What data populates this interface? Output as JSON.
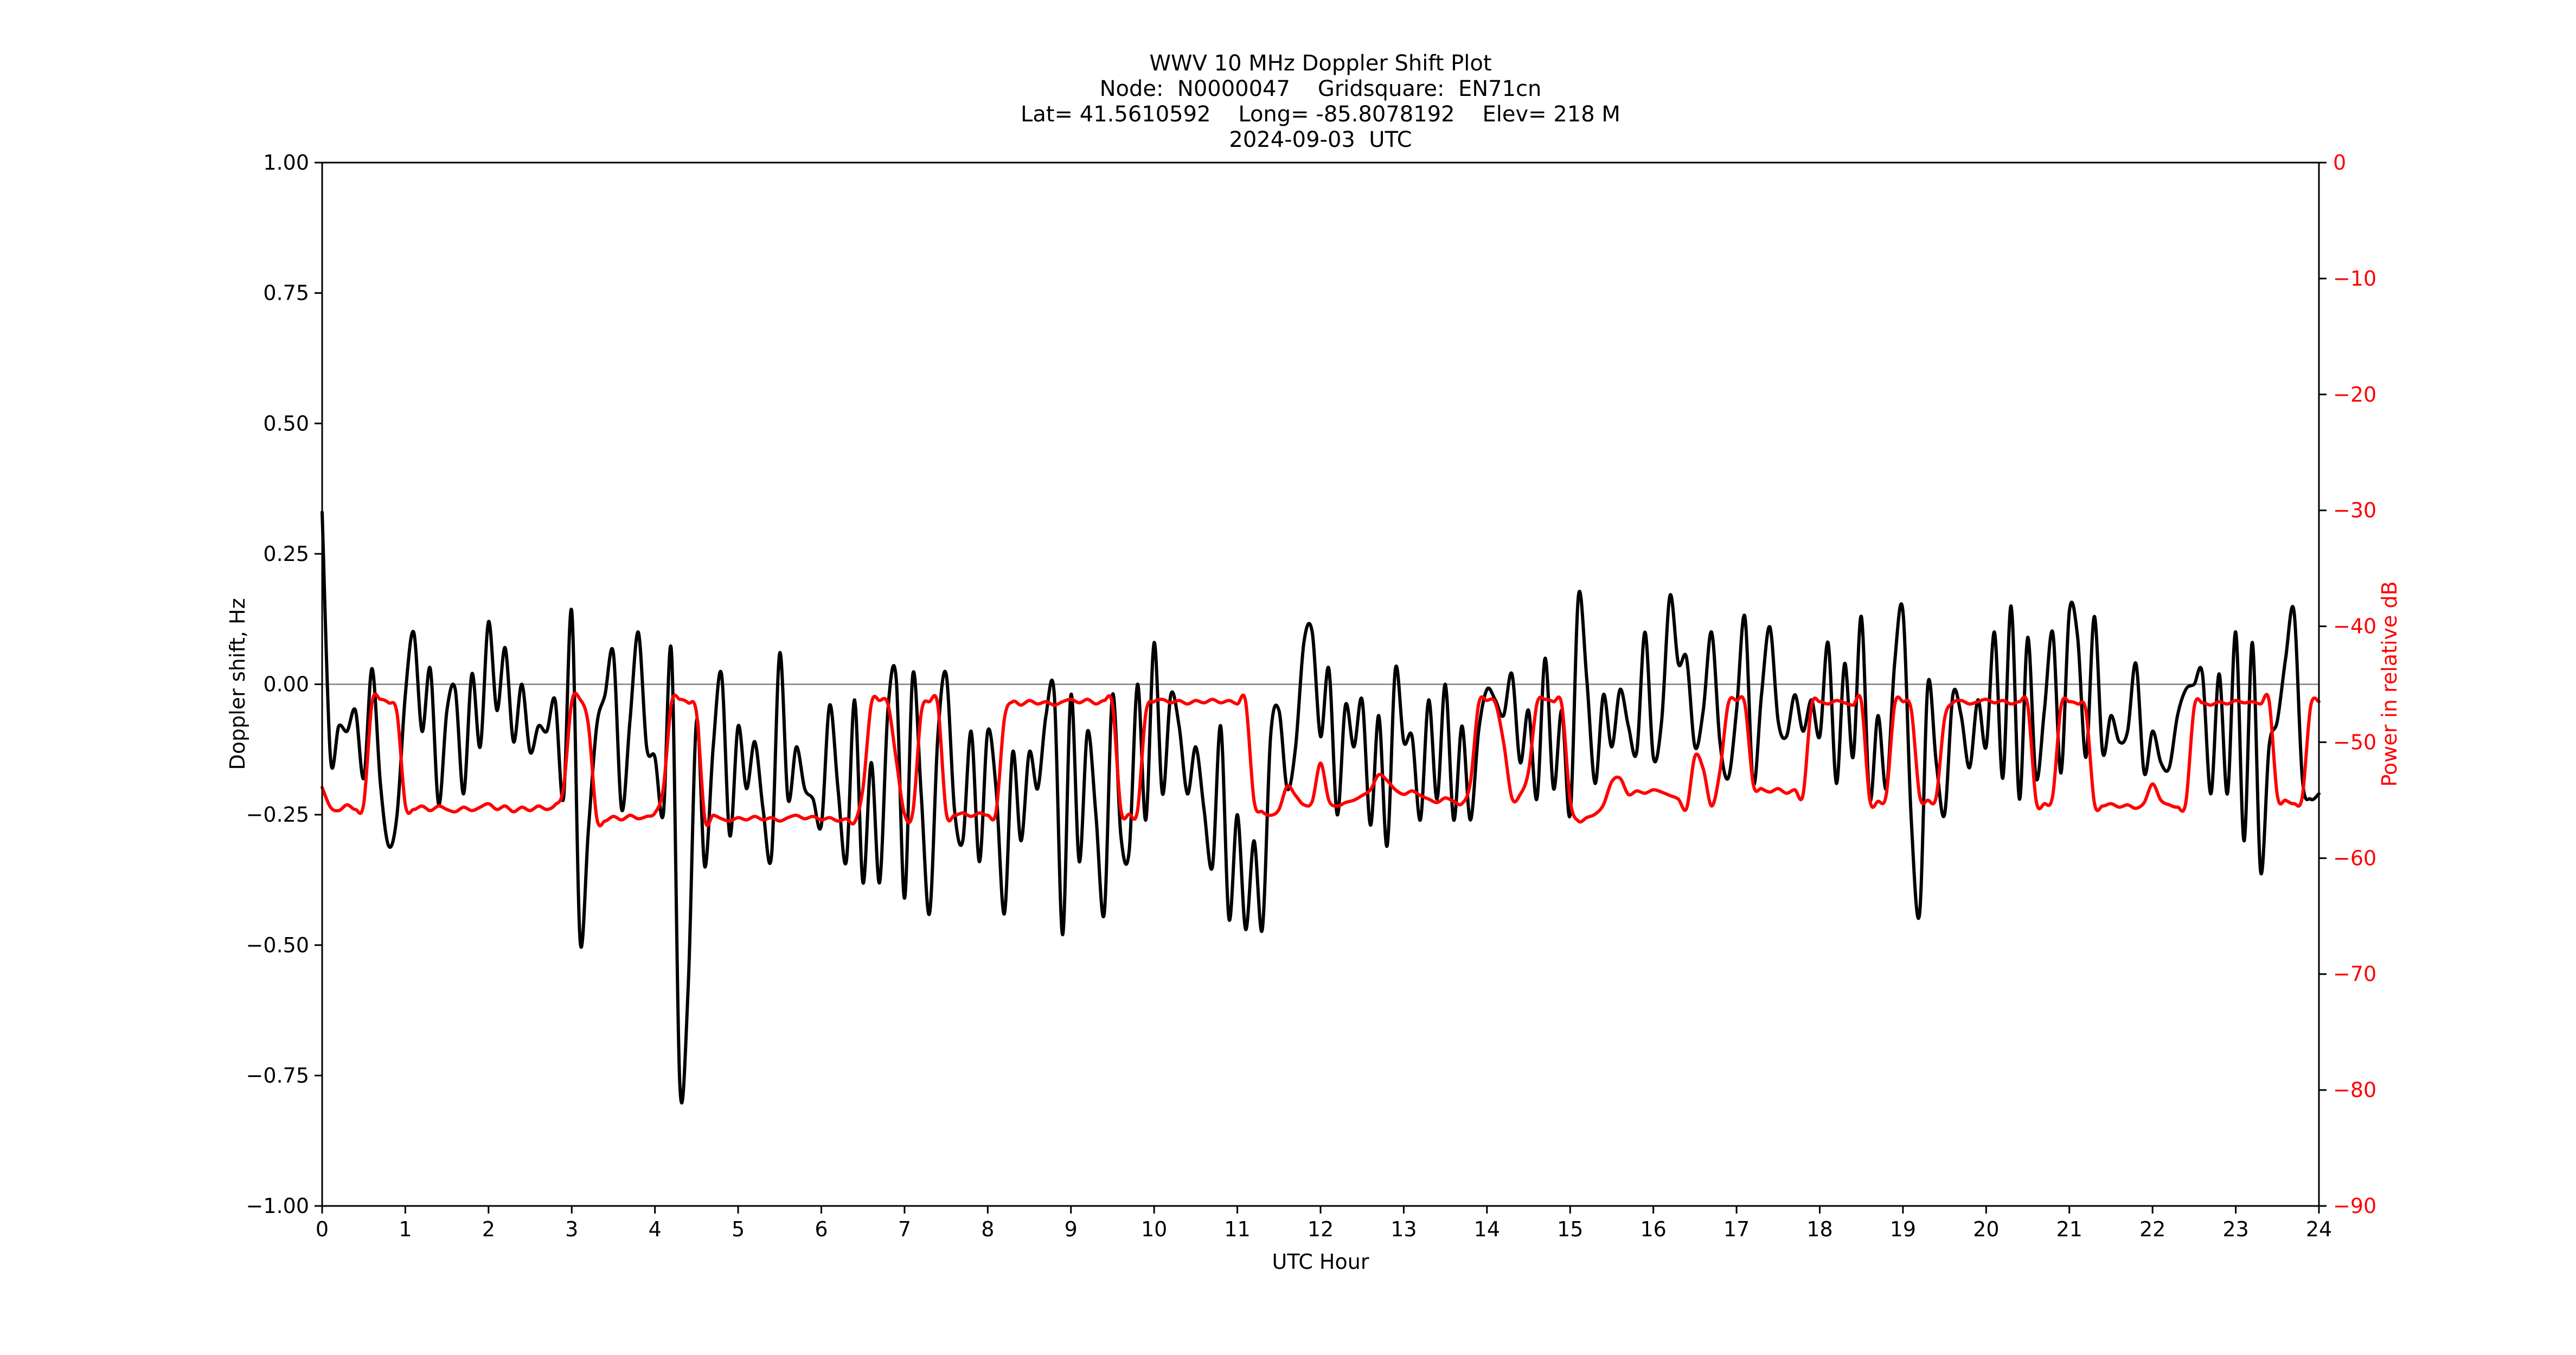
{
  "page": {
    "background": "#ffffff"
  },
  "title": {
    "line1": "WWV 10 MHz Doppler Shift Plot",
    "line2": "Node:  N0000047    Gridsquare:  EN71cn",
    "line3": "Lat= 41.5610592    Long= -85.8078192    Elev= 218 M",
    "line4": "2024-09-03  UTC"
  },
  "axes": {
    "x": {
      "label": "UTC Hour",
      "min": 0,
      "max": 24,
      "ticks": [
        "0",
        "1",
        "2",
        "3",
        "4",
        "5",
        "6",
        "7",
        "8",
        "9",
        "10",
        "11",
        "12",
        "13",
        "14",
        "15",
        "16",
        "17",
        "18",
        "19",
        "20",
        "21",
        "22",
        "23",
        "24"
      ],
      "tick_values": [
        0,
        1,
        2,
        3,
        4,
        5,
        6,
        7,
        8,
        9,
        10,
        11,
        12,
        13,
        14,
        15,
        16,
        17,
        18,
        19,
        20,
        21,
        22,
        23,
        24
      ],
      "color": "#000000"
    },
    "y_left": {
      "label": "Doppler shift, Hz",
      "min": -1.0,
      "max": 1.0,
      "ticks": [
        "1.00",
        "0.75",
        "0.50",
        "0.25",
        "0.00",
        "−0.25",
        "−0.50",
        "−0.75",
        "−1.00"
      ],
      "tick_values": [
        1.0,
        0.75,
        0.5,
        0.25,
        0.0,
        -0.25,
        -0.5,
        -0.75,
        -1.0
      ],
      "color": "#000000"
    },
    "y_right": {
      "label": "Power in relative dB",
      "min": -90,
      "max": 0,
      "ticks": [
        "0",
        "−10",
        "−20",
        "−30",
        "−40",
        "−50",
        "−60",
        "−70",
        "−80",
        "−90"
      ],
      "tick_values": [
        0,
        -10,
        -20,
        -30,
        -40,
        -50,
        -60,
        -70,
        -80,
        -90
      ],
      "color": "#ff0000"
    }
  },
  "chart_data": {
    "type": "line",
    "title": "WWV 10 MHz Doppler Shift Plot",
    "xlabel": "UTC Hour",
    "ylabel_left": "Doppler shift, Hz",
    "ylabel_right": "Power in relative dB",
    "xlim": [
      0,
      24
    ],
    "ylim_left": [
      -1.0,
      1.0
    ],
    "ylim_right": [
      -90,
      0
    ],
    "grid": false,
    "legend": "none",
    "zero_line": {
      "value": 0,
      "axis": "left",
      "color": "#808080"
    },
    "x_start": 0,
    "x_step": 0.1,
    "series": [
      {
        "name": "Doppler shift",
        "axis": "left",
        "unit": "Hz",
        "color": "#000000",
        "values": [
          0.33,
          -0.14,
          -0.08,
          -0.09,
          -0.05,
          -0.18,
          0.03,
          -0.19,
          -0.31,
          -0.25,
          -0.02,
          0.1,
          -0.09,
          0.03,
          -0.23,
          -0.05,
          -0.01,
          -0.21,
          0.02,
          -0.12,
          0.12,
          -0.05,
          0.07,
          -0.11,
          0.0,
          -0.13,
          -0.08,
          -0.09,
          -0.03,
          -0.22,
          0.14,
          -0.49,
          -0.28,
          -0.08,
          -0.02,
          0.06,
          -0.24,
          -0.07,
          0.1,
          -0.12,
          -0.14,
          -0.25,
          0.06,
          -0.77,
          -0.58,
          -0.07,
          -0.35,
          -0.12,
          0.02,
          -0.29,
          -0.08,
          -0.2,
          -0.11,
          -0.24,
          -0.33,
          0.06,
          -0.22,
          -0.12,
          -0.2,
          -0.22,
          -0.27,
          -0.04,
          -0.2,
          -0.34,
          -0.03,
          -0.38,
          -0.15,
          -0.38,
          -0.05,
          0.01,
          -0.41,
          0.02,
          -0.21,
          -0.44,
          -0.1,
          0.02,
          -0.24,
          -0.3,
          -0.09,
          -0.34,
          -0.09,
          -0.2,
          -0.44,
          -0.13,
          -0.3,
          -0.13,
          -0.2,
          -0.06,
          -0.02,
          -0.48,
          -0.02,
          -0.34,
          -0.09,
          -0.25,
          -0.44,
          -0.02,
          -0.29,
          -0.32,
          0.0,
          -0.26,
          0.08,
          -0.21,
          -0.02,
          -0.08,
          -0.21,
          -0.12,
          -0.24,
          -0.35,
          -0.08,
          -0.45,
          -0.25,
          -0.47,
          -0.3,
          -0.47,
          -0.1,
          -0.05,
          -0.2,
          -0.12,
          0.08,
          0.1,
          -0.1,
          0.03,
          -0.25,
          -0.04,
          -0.12,
          -0.03,
          -0.27,
          -0.06,
          -0.31,
          0.03,
          -0.11,
          -0.1,
          -0.26,
          -0.03,
          -0.22,
          0.0,
          -0.26,
          -0.08,
          -0.26,
          -0.09,
          -0.01,
          -0.03,
          -0.06,
          0.02,
          -0.15,
          -0.05,
          -0.22,
          0.05,
          -0.2,
          -0.05,
          -0.25,
          0.17,
          0.01,
          -0.19,
          -0.02,
          -0.12,
          -0.01,
          -0.08,
          -0.13,
          0.1,
          -0.14,
          -0.07,
          0.17,
          0.04,
          0.05,
          -0.12,
          -0.05,
          0.1,
          -0.11,
          -0.18,
          -0.05,
          0.13,
          -0.19,
          -0.02,
          0.11,
          -0.07,
          -0.1,
          -0.02,
          -0.09,
          -0.03,
          -0.1,
          0.08,
          -0.19,
          0.04,
          -0.14,
          0.13,
          -0.22,
          -0.06,
          -0.2,
          0.04,
          0.14,
          -0.26,
          -0.44,
          0.0,
          -0.15,
          -0.25,
          -0.02,
          -0.06,
          -0.16,
          -0.03,
          -0.12,
          0.1,
          -0.18,
          0.15,
          -0.22,
          0.09,
          -0.18,
          -0.05,
          0.1,
          -0.17,
          0.14,
          0.09,
          -0.14,
          0.13,
          -0.13,
          -0.06,
          -0.11,
          -0.09,
          0.04,
          -0.17,
          -0.09,
          -0.15,
          -0.16,
          -0.06,
          -0.01,
          0.0,
          0.02,
          -0.21,
          0.02,
          -0.21,
          0.1,
          -0.3,
          0.08,
          -0.36,
          -0.12,
          -0.07,
          0.05,
          0.14,
          -0.18,
          -0.22,
          -0.21
        ]
      },
      {
        "name": "Power",
        "axis": "right",
        "unit": "dB",
        "color": "#ff0000",
        "values": [
          -53.9,
          -55.6,
          -55.9,
          -55.4,
          -55.8,
          -55.3,
          -46.6,
          -46.3,
          -46.6,
          -47.5,
          -55.4,
          -55.8,
          -55.5,
          -55.9,
          -55.5,
          -55.8,
          -56.0,
          -55.6,
          -55.9,
          -55.6,
          -55.3,
          -55.8,
          -55.5,
          -56.0,
          -55.6,
          -55.9,
          -55.5,
          -55.8,
          -55.4,
          -54.0,
          -46.5,
          -46.3,
          -48.5,
          -56.5,
          -56.8,
          -56.4,
          -56.7,
          -56.3,
          -56.6,
          -56.4,
          -56.1,
          -54.0,
          -46.6,
          -46.3,
          -46.6,
          -47.5,
          -56.6,
          -56.3,
          -56.6,
          -56.8,
          -56.5,
          -56.7,
          -56.4,
          -56.7,
          -56.5,
          -56.8,
          -56.5,
          -56.3,
          -56.6,
          -56.4,
          -56.7,
          -56.5,
          -56.8,
          -56.6,
          -56.9,
          -54.0,
          -46.7,
          -46.4,
          -46.7,
          -51.5,
          -56.2,
          -56.0,
          -47.5,
          -46.5,
          -46.8,
          -56.0,
          -56.3,
          -56.1,
          -56.4,
          -56.1,
          -56.3,
          -56.0,
          -48.0,
          -46.5,
          -46.8,
          -46.4,
          -46.7,
          -46.5,
          -46.8,
          -46.5,
          -46.3,
          -46.6,
          -46.3,
          -46.7,
          -46.4,
          -46.8,
          -55.8,
          -56.2,
          -55.9,
          -47.5,
          -46.5,
          -46.3,
          -46.6,
          -46.4,
          -46.7,
          -46.4,
          -46.6,
          -46.3,
          -46.6,
          -46.4,
          -46.7,
          -46.5,
          -55.0,
          -56.0,
          -56.3,
          -55.8,
          -53.8,
          -54.6,
          -55.4,
          -55.1,
          -51.8,
          -55.0,
          -55.5,
          -55.2,
          -55.0,
          -54.6,
          -54.1,
          -52.8,
          -53.3,
          -54.1,
          -54.5,
          -54.2,
          -54.6,
          -54.9,
          -55.2,
          -54.8,
          -55.1,
          -55.3,
          -53.5,
          -46.7,
          -46.4,
          -46.6,
          -50.0,
          -54.8,
          -54.5,
          -52.5,
          -46.7,
          -46.3,
          -46.5,
          -46.8,
          -55.0,
          -56.8,
          -56.5,
          -56.2,
          -55.4,
          -53.4,
          -53.1,
          -54.5,
          -54.2,
          -54.4,
          -54.1,
          -54.3,
          -54.6,
          -54.9,
          -55.7,
          -51.2,
          -52.3,
          -55.5,
          -52.5,
          -46.7,
          -46.4,
          -46.7,
          -53.6,
          -54.0,
          -54.3,
          -54.0,
          -54.4,
          -54.1,
          -54.5,
          -46.9,
          -46.5,
          -46.7,
          -46.4,
          -46.6,
          -46.8,
          -46.5,
          -54.9,
          -55.1,
          -54.5,
          -46.8,
          -46.5,
          -47.2,
          -54.6,
          -55.0,
          -54.7,
          -48.0,
          -46.6,
          -46.4,
          -46.7,
          -46.5,
          -46.3,
          -46.6,
          -46.4,
          -46.7,
          -46.5,
          -46.8,
          -55.0,
          -55.3,
          -54.6,
          -46.9,
          -46.5,
          -46.7,
          -47.3,
          -55.2,
          -55.5,
          -55.3,
          -55.6,
          -55.4,
          -55.7,
          -55.2,
          -53.6,
          -55.0,
          -55.4,
          -55.6,
          -55.2,
          -47.0,
          -46.6,
          -46.8,
          -46.5,
          -46.7,
          -46.4,
          -46.6,
          -46.5,
          -46.7,
          -46.4,
          -54.6,
          -55.0,
          -55.3,
          -54.7,
          -46.9,
          -46.5
        ]
      }
    ]
  }
}
